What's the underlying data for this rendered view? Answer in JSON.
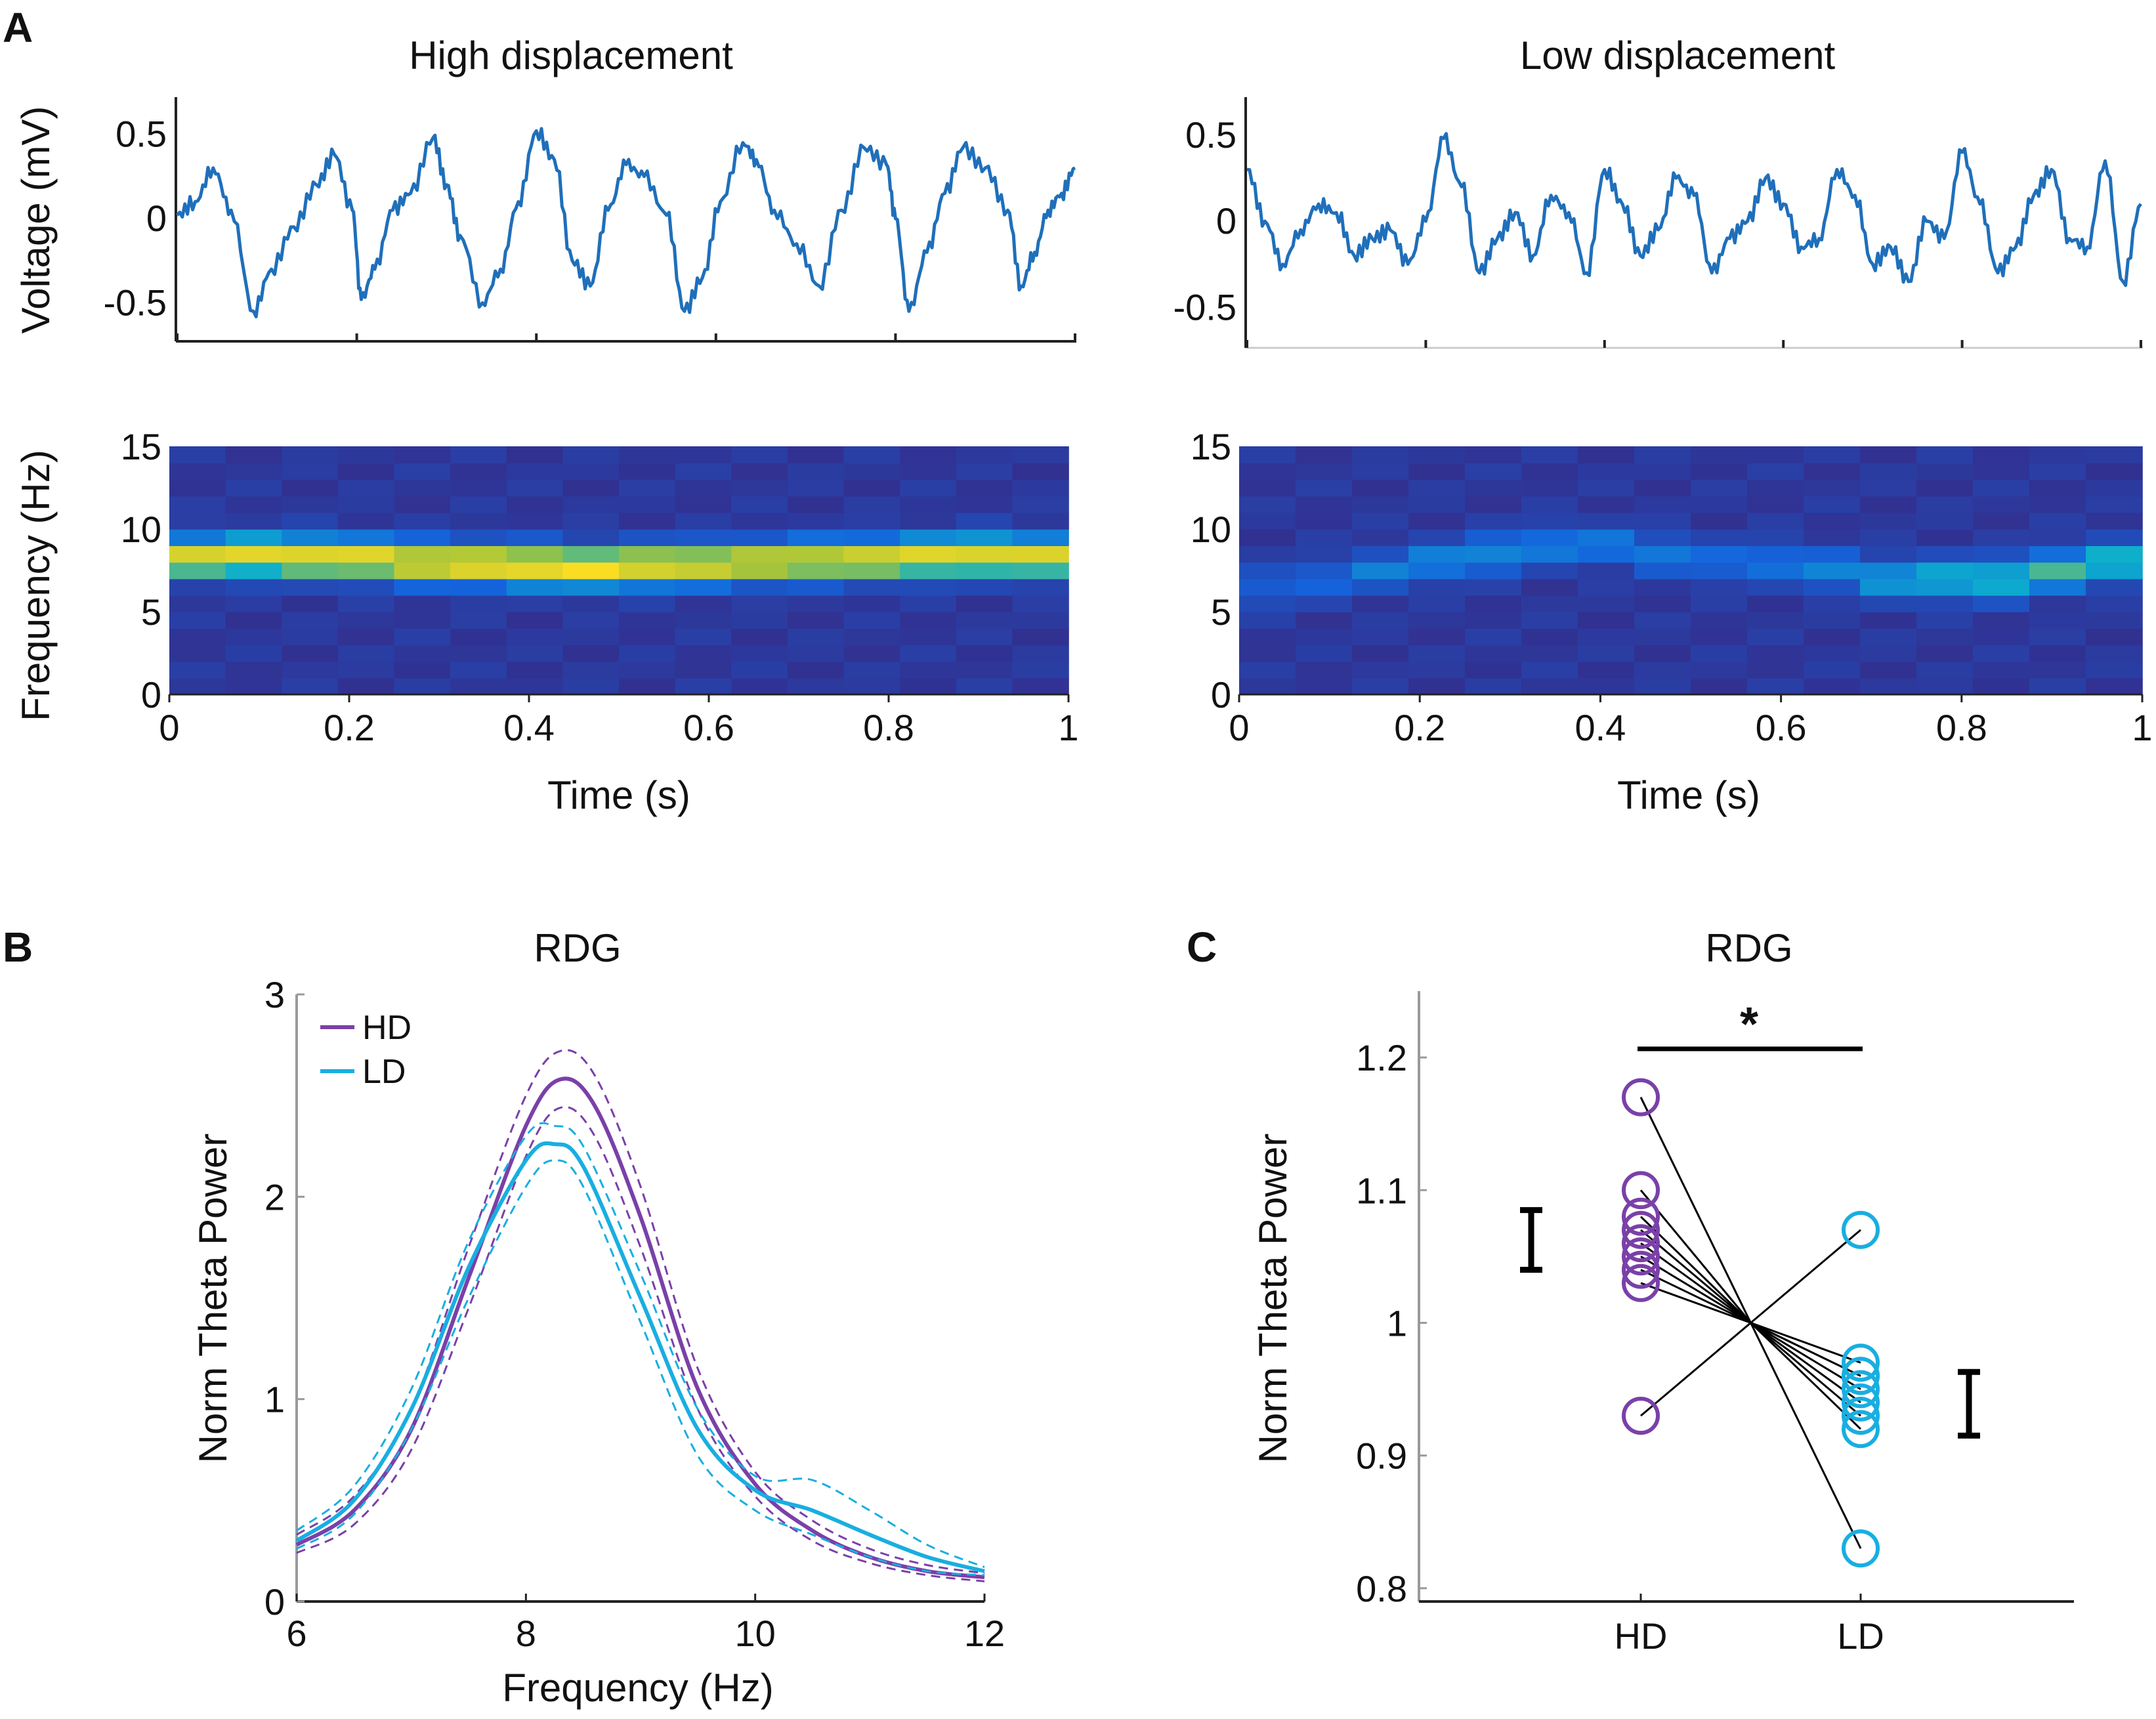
{
  "colors": {
    "hd": "#7a40a8",
    "ld": "#19aee0",
    "trace": "#1f6fba",
    "axis": "#222222",
    "pair_line": "#000000"
  },
  "panels": {
    "A": {
      "letter": "A"
    },
    "B": {
      "letter": "B"
    },
    "C": {
      "letter": "C"
    }
  },
  "chart_data": [
    {
      "id": "A-trace-high",
      "type": "line",
      "title": "High displacement",
      "ylabel": "Voltage (mV)",
      "xlim": [
        0,
        1
      ],
      "ylim": [
        -0.72,
        0.72
      ],
      "yticks": [
        {
          "v": -0.5,
          "label": "-0.5"
        },
        {
          "v": 0,
          "label": "0"
        },
        {
          "v": 0.5,
          "label": "0.5"
        }
      ],
      "xtick_values": [
        0,
        0.2,
        0.4,
        0.6,
        0.8,
        1
      ],
      "series": [
        {
          "name": "LFP",
          "x": [
            0,
            0.02,
            0.04,
            0.06,
            0.085,
            0.105,
            0.13,
            0.155,
            0.175,
            0.195,
            0.205,
            0.22,
            0.24,
            0.26,
            0.285,
            0.3,
            0.315,
            0.34,
            0.36,
            0.38,
            0.4,
            0.42,
            0.44,
            0.46,
            0.48,
            0.5,
            0.52,
            0.545,
            0.565,
            0.585,
            0.605,
            0.63,
            0.645,
            0.665,
            0.69,
            0.715,
            0.74,
            0.765,
            0.79,
            0.8,
            0.815,
            0.835,
            0.855,
            0.875,
            0.9,
            0.925,
            0.94,
            0.955,
            0.97,
            0.985,
            1.0
          ],
          "y": [
            0.02,
            0.1,
            0.3,
            0.05,
            -0.55,
            -0.3,
            -0.05,
            0.2,
            0.38,
            0.05,
            -0.48,
            -0.3,
            0.05,
            0.15,
            0.48,
            0.2,
            -0.1,
            -0.5,
            -0.3,
            0.1,
            0.52,
            0.35,
            -0.25,
            -0.4,
            0.05,
            0.32,
            0.25,
            0.02,
            -0.55,
            -0.35,
            0.1,
            0.45,
            0.35,
            0.05,
            -0.15,
            -0.4,
            0.05,
            0.42,
            0.32,
            0.0,
            -0.55,
            -0.2,
            0.15,
            0.42,
            0.3,
            0.05,
            -0.4,
            -0.2,
            0.05,
            0.15,
            0.3
          ]
        }
      ]
    },
    {
      "id": "A-trace-low",
      "type": "line",
      "title": "Low displacement",
      "ylabel": "",
      "xlim": [
        0,
        1
      ],
      "ylim": [
        -0.72,
        0.72
      ],
      "yticks": [
        {
          "v": -0.5,
          "label": "-0.5"
        },
        {
          "v": 0,
          "label": "0"
        },
        {
          "v": 0.5,
          "label": "0.5"
        }
      ],
      "xtick_values": [
        0,
        0.2,
        0.4,
        0.6,
        0.8,
        1
      ],
      "series": [
        {
          "name": "LFP",
          "x": [
            0,
            0.02,
            0.04,
            0.06,
            0.08,
            0.1,
            0.12,
            0.14,
            0.16,
            0.18,
            0.2,
            0.22,
            0.24,
            0.26,
            0.28,
            0.3,
            0.32,
            0.34,
            0.36,
            0.38,
            0.4,
            0.42,
            0.44,
            0.46,
            0.48,
            0.5,
            0.52,
            0.54,
            0.56,
            0.58,
            0.6,
            0.62,
            0.64,
            0.66,
            0.68,
            0.7,
            0.72,
            0.74,
            0.76,
            0.78,
            0.8,
            0.82,
            0.84,
            0.86,
            0.88,
            0.9,
            0.92,
            0.94,
            0.96,
            0.98,
            1.0
          ],
          "y": [
            0.3,
            0.0,
            -0.25,
            -0.05,
            0.1,
            0.05,
            -0.2,
            -0.1,
            -0.05,
            -0.25,
            0.0,
            0.48,
            0.2,
            -0.3,
            -0.1,
            0.05,
            -0.2,
            0.15,
            0.05,
            -0.3,
            0.3,
            0.1,
            -0.2,
            -0.05,
            0.25,
            0.15,
            -0.3,
            -0.1,
            0.0,
            0.25,
            0.1,
            -0.15,
            -0.1,
            0.3,
            0.15,
            -0.25,
            -0.15,
            -0.35,
            0.0,
            -0.1,
            0.4,
            0.1,
            -0.3,
            -0.15,
            0.15,
            0.3,
            -0.1,
            -0.15,
            0.35,
            -0.35,
            0.1
          ]
        }
      ]
    },
    {
      "id": "A-spec-high",
      "type": "heatmap",
      "ylabel": "Frequency (Hz)",
      "xlabel": "Time (s)",
      "xlim": [
        0,
        1
      ],
      "ylim": [
        0,
        15
      ],
      "xticks": [
        "0",
        "0.2",
        "0.4",
        "0.6",
        "0.8",
        "1"
      ],
      "yticks": [
        "0",
        "5",
        "10",
        "15"
      ],
      "colormap": "parula",
      "band_center_hz": [
        8.3,
        8.4,
        8.3,
        8.2,
        8.0,
        7.9,
        7.8,
        7.7,
        7.8,
        7.9,
        8.0,
        8.1,
        8.2,
        8.3,
        8.4,
        8.3
      ],
      "band_power": [
        0.85,
        0.88,
        0.9,
        0.9,
        0.92,
        0.95,
        0.97,
        0.96,
        0.92,
        0.88,
        0.85,
        0.85,
        0.86,
        0.88,
        0.88,
        0.85
      ]
    },
    {
      "id": "A-spec-low",
      "type": "heatmap",
      "xlabel": "Time (s)",
      "xlim": [
        0,
        1
      ],
      "ylim": [
        0,
        15
      ],
      "xticks": [
        "0",
        "0.2",
        "0.4",
        "0.6",
        "0.8",
        "1"
      ],
      "yticks": [
        "0",
        "5",
        "10",
        "15"
      ],
      "colormap": "parula",
      "band_center_hz": [
        6.5,
        7.0,
        7.5,
        8.0,
        8.5,
        9.0,
        9.0,
        8.5,
        8.0,
        8.0,
        7.5,
        7.0,
        7.0,
        7.0,
        7.5,
        8.0
      ],
      "band_power": [
        0.18,
        0.2,
        0.26,
        0.3,
        0.32,
        0.28,
        0.26,
        0.26,
        0.22,
        0.25,
        0.3,
        0.38,
        0.46,
        0.5,
        0.52,
        0.5
      ]
    },
    {
      "id": "B",
      "type": "line",
      "title": "RDG",
      "xlabel": "Frequency (Hz)",
      "ylabel": "Norm Theta Power",
      "xlim": [
        6,
        12
      ],
      "ylim": [
        0,
        3
      ],
      "xticks": [
        "6",
        "8",
        "10",
        "12"
      ],
      "yticks": [
        "0",
        "1",
        "2",
        "3"
      ],
      "legend": [
        "HD",
        "LD"
      ],
      "legend_position": "top-left",
      "series": [
        {
          "name": "HD",
          "x": [
            6,
            6.5,
            7,
            7.5,
            8,
            8.3,
            8.6,
            9,
            9.5,
            10,
            10.5,
            11,
            11.5,
            12
          ],
          "y": [
            0.28,
            0.45,
            0.85,
            1.6,
            2.35,
            2.58,
            2.45,
            1.9,
            1.05,
            0.58,
            0.35,
            0.22,
            0.15,
            0.12
          ]
        },
        {
          "name": "HD upper",
          "style": "dashed",
          "x": [
            6,
            6.5,
            7,
            7.5,
            8,
            8.3,
            8.6,
            9,
            9.5,
            10,
            10.5,
            11,
            11.5,
            12
          ],
          "y": [
            0.33,
            0.52,
            0.95,
            1.75,
            2.5,
            2.72,
            2.6,
            2.05,
            1.15,
            0.64,
            0.4,
            0.26,
            0.18,
            0.14
          ]
        },
        {
          "name": "HD lower",
          "style": "dashed",
          "x": [
            6,
            6.5,
            7,
            7.5,
            8,
            8.3,
            8.6,
            9,
            9.5,
            10,
            10.5,
            11,
            11.5,
            12
          ],
          "y": [
            0.24,
            0.38,
            0.75,
            1.45,
            2.2,
            2.44,
            2.3,
            1.75,
            0.95,
            0.52,
            0.3,
            0.19,
            0.13,
            0.1
          ]
        },
        {
          "name": "LD",
          "x": [
            6,
            6.5,
            7,
            7.5,
            8,
            8.25,
            8.5,
            9,
            9.5,
            10,
            10.5,
            11,
            11.5,
            12
          ],
          "y": [
            0.3,
            0.5,
            0.95,
            1.65,
            2.18,
            2.26,
            2.15,
            1.5,
            0.85,
            0.55,
            0.45,
            0.33,
            0.22,
            0.15
          ]
        },
        {
          "name": "LD upper",
          "style": "dashed",
          "x": [
            6,
            6.5,
            7,
            7.5,
            8,
            8.25,
            8.5,
            9,
            9.5,
            10,
            10.5,
            11,
            11.5,
            12
          ],
          "y": [
            0.35,
            0.57,
            1.05,
            1.78,
            2.3,
            2.35,
            2.25,
            1.62,
            0.95,
            0.62,
            0.6,
            0.45,
            0.28,
            0.17
          ]
        },
        {
          "name": "LD lower",
          "style": "dashed",
          "x": [
            6,
            6.5,
            7,
            7.5,
            8,
            8.25,
            8.5,
            9,
            9.5,
            10,
            10.5,
            11,
            11.5,
            12
          ],
          "y": [
            0.26,
            0.43,
            0.85,
            1.5,
            2.05,
            2.18,
            2.05,
            1.38,
            0.72,
            0.45,
            0.33,
            0.22,
            0.15,
            0.13
          ]
        }
      ]
    },
    {
      "id": "C",
      "type": "scatter",
      "title": "RDG",
      "ylabel": "Norm Theta Power",
      "categories": [
        "HD",
        "LD"
      ],
      "ylim": [
        0.79,
        1.25
      ],
      "yticks": [
        "0.8",
        "0.9",
        "1",
        "1.1",
        "1.2"
      ],
      "significance": "*",
      "series": [
        {
          "name": "HD",
          "values": [
            1.17,
            1.1,
            1.08,
            1.07,
            1.06,
            1.05,
            1.04,
            1.03,
            0.93
          ]
        },
        {
          "name": "LD",
          "values": [
            0.83,
            0.96,
            0.92,
            0.93,
            0.94,
            0.95,
            0.96,
            0.97,
            1.07
          ]
        }
      ],
      "pair_midpoint": 1.0,
      "mean_sem": [
        {
          "name": "HD",
          "mean": 1.062,
          "low": 1.04,
          "high": 1.085
        },
        {
          "name": "LD",
          "mean": 0.94,
          "low": 0.915,
          "high": 0.963
        }
      ]
    }
  ]
}
